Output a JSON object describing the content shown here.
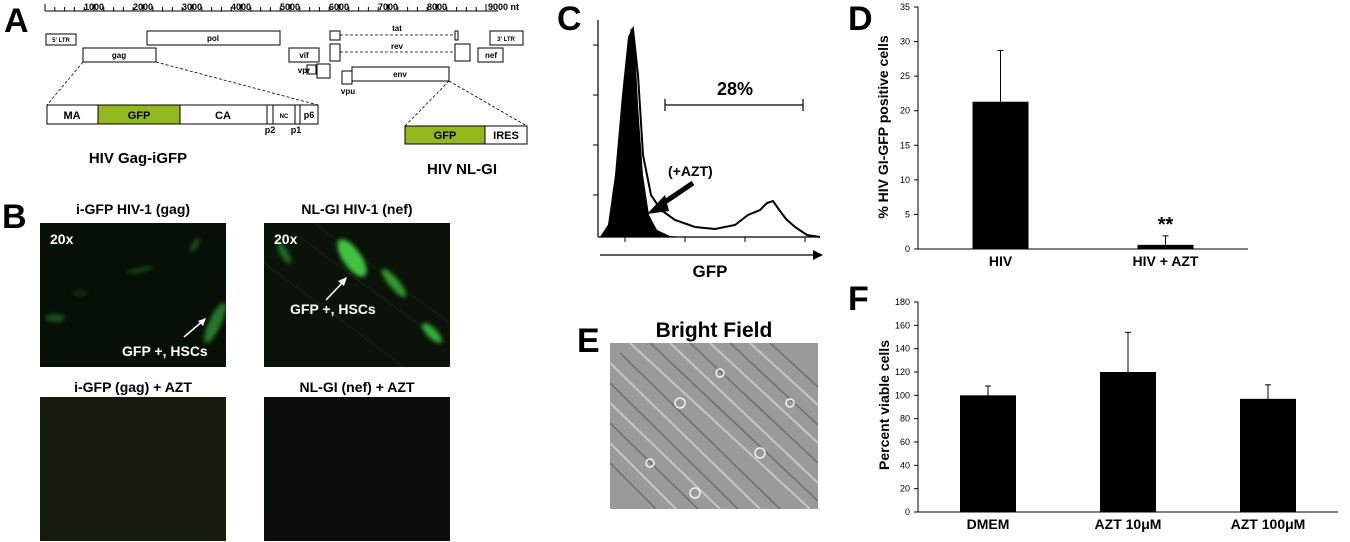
{
  "panels": {
    "a": "A",
    "b": "B",
    "c": "C",
    "d": "D",
    "e": "E",
    "f": "F"
  },
  "genome": {
    "ticks": [
      "1000",
      "2000",
      "3000",
      "4000",
      "5000",
      "6000",
      "7000",
      "8000",
      "9000 nt"
    ],
    "genes": {
      "ltr5": "5' LTR",
      "gag": "gag",
      "pol": "pol",
      "vif": "vif",
      "vpr": "vpr",
      "tat": "tat",
      "rev": "rev",
      "vpu": "vpu",
      "env": "env",
      "nef": "nef",
      "ltr3": "3' LTR"
    },
    "gag_construct": {
      "segments": [
        "MA",
        "GFP",
        "CA",
        "NC",
        "p6"
      ],
      "small_labels": [
        "p2",
        "p1"
      ],
      "name": "HIV Gag-iGFP"
    },
    "nl_construct": {
      "segments": [
        "GFP",
        "IRES"
      ],
      "name": "HIV NL-GI"
    },
    "gfp_color": "#93b81e"
  },
  "micrographs": {
    "gag": {
      "title": "i-GFP HIV-1 (gag)",
      "magnification": "20x",
      "arrow_label": "GFP +, HSCs"
    },
    "nef": {
      "title": "NL-GI HIV-1 (nef)",
      "magnification": "20x",
      "arrow_label": "GFP +, HSCs"
    },
    "gag_azt": {
      "title": "i-GFP (gag) + AZT"
    },
    "nef_azt": {
      "title": "NL-GI (nef) + AZT"
    }
  },
  "flow": {
    "percent_label": "28%",
    "azt_label": "(+AZT)",
    "xlabel": "GFP"
  },
  "brightfield": {
    "title": "Bright Field"
  },
  "chart_data": [
    {
      "type": "bar",
      "categories": [
        "HIV",
        "HIV + AZT"
      ],
      "values": [
        21.3,
        0.6
      ],
      "errors": [
        7.4,
        1.3
      ],
      "ylabel": "% HIV GI-GFP positive cells",
      "ylim": [
        0,
        35
      ],
      "yticks": [
        "0",
        "5",
        "10",
        "15",
        "20",
        "25",
        "30",
        "35"
      ],
      "annotation": "**",
      "bar_color": "#000000",
      "grid": false
    },
    {
      "type": "bar",
      "categories": [
        "DMEM",
        "AZT 10μM",
        "AZT 100μM"
      ],
      "values": [
        100,
        120,
        97
      ],
      "errors": [
        8,
        34,
        12
      ],
      "ylabel": "Percent viable cells",
      "ylim": [
        0,
        180
      ],
      "yticks": [
        "0",
        "20",
        "40",
        "60",
        "80",
        "100",
        "120",
        "140",
        "160",
        "180"
      ],
      "bar_color": "#000000",
      "grid": false
    }
  ]
}
